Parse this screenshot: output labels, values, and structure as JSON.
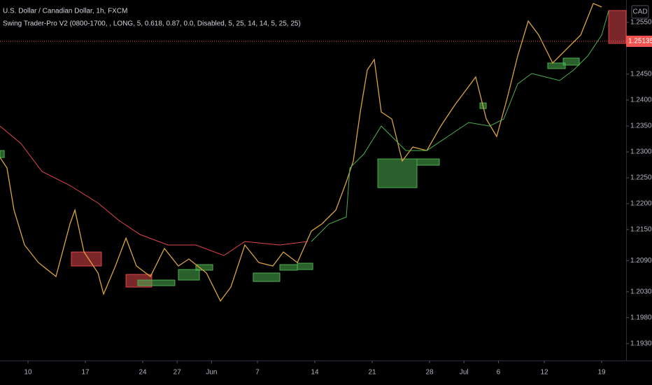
{
  "chart_data": {
    "type": "line",
    "title": "U.S. Dollar / Canadian Dollar, 1h, FXCM",
    "subtitle": "Swing Trader-Pro V2 (0800-1700, , LONG, 5, 0.618, 0.87, 0.0, Disabled, 5, 25, 14, 14, 5, 25, 25)",
    "currency": "CAD",
    "xlim": [
      -2.44,
      52.13
    ],
    "ylim": [
      1.18973,
      1.25932
    ],
    "xticks": [
      {
        "value": 0,
        "label": "10"
      },
      {
        "value": 5,
        "label": "17"
      },
      {
        "value": 10,
        "label": "24"
      },
      {
        "value": 13,
        "label": "27"
      },
      {
        "value": 16,
        "label": "Jun"
      },
      {
        "value": 20,
        "label": "7"
      },
      {
        "value": 25,
        "label": "14"
      },
      {
        "value": 30,
        "label": "21"
      },
      {
        "value": 35,
        "label": "28"
      },
      {
        "value": 38,
        "label": "Jul"
      },
      {
        "value": 41,
        "label": "6"
      },
      {
        "value": 45,
        "label": "12"
      },
      {
        "value": 50,
        "label": "19"
      }
    ],
    "yticks": [
      {
        "value": 1.255,
        "label": "1.25500"
      },
      {
        "value": 1.245,
        "label": "1.24500"
      },
      {
        "value": 1.24,
        "label": "1.24000"
      },
      {
        "value": 1.235,
        "label": "1.23500"
      },
      {
        "value": 1.23,
        "label": "1.23000"
      },
      {
        "value": 1.225,
        "label": "1.22500"
      },
      {
        "value": 1.22,
        "label": "1.22000"
      },
      {
        "value": 1.215,
        "label": "1.21500"
      },
      {
        "value": 1.209,
        "label": "1.20900"
      },
      {
        "value": 1.203,
        "label": "1.20300"
      },
      {
        "value": 1.198,
        "label": "1.19800"
      },
      {
        "value": 1.193,
        "label": "1.19300"
      }
    ],
    "last_price": {
      "value": 1.25135,
      "color": "#ef5350"
    },
    "series": [
      {
        "color": "#d9a441",
        "x": [
          -2.44,
          -1.83,
          -1.22,
          -0.3,
          0.91,
          2.44,
          3.66,
          4.09,
          4.88,
          6.1,
          6.59,
          7.62,
          8.54,
          9.45,
          10.67,
          11.89,
          13.11,
          14.02,
          15.55,
          16.77,
          17.68,
          18.9,
          20.12,
          21.34,
          22.26,
          23.48,
          24.7,
          25.61,
          26.83,
          27.74,
          28.35,
          28.96,
          29.57,
          30.18,
          30.79,
          31.71,
          32.62,
          33.54,
          34.76,
          35.98,
          37.2,
          38.11,
          39.02,
          39.94,
          40.85,
          41.77,
          42.68,
          43.6,
          44.51,
          45.73,
          46.95,
          48.17,
          49.27,
          50.0
        ],
        "values": [
          1.22891,
          1.22689,
          1.21878,
          1.21202,
          1.20864,
          1.20594,
          1.21608,
          1.21878,
          1.21067,
          1.20662,
          1.20256,
          1.20797,
          1.21337,
          1.20797,
          1.20594,
          1.21135,
          1.20797,
          1.20932,
          1.20662,
          1.20121,
          1.20391,
          1.21202,
          1.20864,
          1.20797,
          1.21067,
          1.20864,
          1.21472,
          1.21608,
          1.21878,
          1.22418,
          1.22824,
          1.2377,
          1.24581,
          1.24783,
          1.2377,
          1.23635,
          1.22824,
          1.23094,
          1.23026,
          1.23499,
          1.23905,
          1.24175,
          1.24446,
          1.23635,
          1.23297,
          1.2404,
          1.24851,
          1.25527,
          1.25256,
          1.24716,
          1.24986,
          1.25256,
          1.25864,
          1.25797
        ]
      },
      {
        "color": "#e0474c",
        "x": [
          -2.44,
          -0.61,
          1.22,
          3.66,
          6.1,
          7.93,
          9.76,
          12.2,
          14.63,
          17.07,
          18.9,
          21.95,
          24.39
        ],
        "values": [
          1.23499,
          1.23161,
          1.22621,
          1.22351,
          1.22013,
          1.21675,
          1.21405,
          1.21202,
          1.21202,
          1.21,
          1.2127,
          1.21202,
          1.2127
        ]
      },
      {
        "color": "#4caf50",
        "x": [
          24.7,
          26.22,
          27.74,
          28.05,
          29.27,
          30.79,
          32.01,
          32.93,
          34.76,
          36.59,
          38.41,
          40.24,
          41.46,
          42.68,
          43.9,
          45.12,
          46.34,
          47.56,
          48.78,
          50.0,
          50.61
        ],
        "values": [
          1.2127,
          1.21608,
          1.21743,
          1.22689,
          1.22959,
          1.23499,
          1.23229,
          1.23026,
          1.23026,
          1.23297,
          1.23567,
          1.23499,
          1.23635,
          1.2431,
          1.24513,
          1.24446,
          1.24378,
          1.24581,
          1.24851,
          1.25256,
          1.25729
        ]
      }
    ],
    "zones": [
      {
        "x": [
          3.78,
          6.4
        ],
        "y": [
          1.21067,
          1.20797
        ],
        "color": "#e0474c"
      },
      {
        "x": [
          8.54,
          10.79
        ],
        "y": [
          1.20634,
          1.20391
        ],
        "color": "#e0474c"
      },
      {
        "x": [
          50.61,
          52.13
        ],
        "y": [
          1.25729,
          1.25094
        ],
        "color": "#e0474c"
      },
      {
        "x": [
          -2.44,
          -2.07
        ],
        "y": [
          1.23026,
          1.22891
        ],
        "color": "#4caf50"
      },
      {
        "x": [
          9.57,
          12.8
        ],
        "y": [
          1.20526,
          1.20418
        ],
        "color": "#4caf50"
      },
      {
        "x": [
          13.11,
          14.94
        ],
        "y": [
          1.20729,
          1.20526
        ],
        "color": "#4caf50"
      },
      {
        "x": [
          14.63,
          16.1
        ],
        "y": [
          1.20824,
          1.20716
        ],
        "color": "#4caf50"
      },
      {
        "x": [
          19.63,
          21.95
        ],
        "y": [
          1.20662,
          1.20499
        ],
        "color": "#4caf50"
      },
      {
        "x": [
          21.95,
          23.48
        ],
        "y": [
          1.20824,
          1.20716
        ],
        "color": "#4caf50"
      },
      {
        "x": [
          23.48,
          24.82
        ],
        "y": [
          1.20851,
          1.20729
        ],
        "color": "#4caf50"
      },
      {
        "x": [
          30.49,
          33.9
        ],
        "y": [
          1.22864,
          1.2231
        ],
        "color": "#4caf50"
      },
      {
        "x": [
          33.9,
          35.85
        ],
        "y": [
          1.22864,
          1.22743
        ],
        "color": "#4caf50"
      },
      {
        "x": [
          39.39,
          39.94
        ],
        "y": [
          1.23945,
          1.23837
        ],
        "color": "#4caf50"
      },
      {
        "x": [
          45.3,
          46.83
        ],
        "y": [
          1.24716,
          1.24608
        ],
        "color": "#4caf50"
      },
      {
        "x": [
          46.65,
          48.05
        ],
        "y": [
          1.2481,
          1.24675
        ],
        "color": "#4caf50"
      }
    ]
  }
}
